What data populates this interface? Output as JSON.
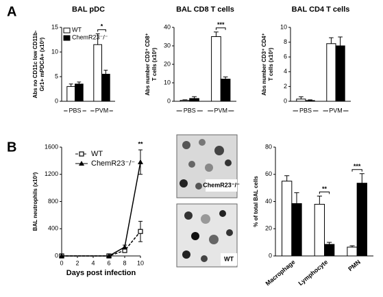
{
  "panel_labels": [
    "A",
    "B"
  ],
  "images": [
    {
      "label": "ChemR23⁻/⁻"
    },
    {
      "label": "WT"
    }
  ],
  "chart_data": [
    {
      "type": "bar",
      "title": "BAL pDC",
      "ylabel": [
        "Abs no CD11c low CD11b-",
        "Gr1+ mPDCA+ (x10³)"
      ],
      "categories": [
        "PBS",
        "PVM"
      ],
      "ylim": [
        0,
        15
      ],
      "yticks": [
        0,
        5,
        10,
        15
      ],
      "legend": "upper left",
      "series": [
        {
          "name": "WT",
          "color": "#ffffff",
          "values": [
            3,
            11.5
          ],
          "errors": [
            0.5,
            2.2
          ]
        },
        {
          "name": "ChemR23⁻/⁻",
          "color": "#000000",
          "values": [
            3.5,
            5.5
          ],
          "errors": [
            0.4,
            0.8
          ]
        }
      ],
      "annotations": [
        {
          "text": "*",
          "category": "PVM"
        }
      ]
    },
    {
      "type": "bar",
      "title": "BAL CD8 T cells",
      "ylabel": [
        "Abs number CD3⁺ CD8⁺",
        "T cells (x10³)"
      ],
      "categories": [
        "PBS",
        "PVM"
      ],
      "ylim": [
        0,
        40
      ],
      "yticks": [
        0,
        10,
        20,
        30,
        40
      ],
      "series": [
        {
          "color": "#ffffff",
          "values": [
            0.5,
            35
          ],
          "errors": [
            0.3,
            2.5
          ]
        },
        {
          "color": "#000000",
          "values": [
            1.5,
            12
          ],
          "errors": [
            1,
            1.2
          ]
        }
      ],
      "annotations": [
        {
          "text": "***",
          "category": "PVM"
        }
      ]
    },
    {
      "type": "bar",
      "title": "BAL CD4 T cells",
      "ylabel": [
        "Abs number CD3⁺ CD4⁺",
        "T cells (x10³)"
      ],
      "categories": [
        "PBS",
        "PVM"
      ],
      "ylim": [
        0,
        10
      ],
      "yticks": [
        0,
        2,
        4,
        6,
        8,
        10
      ],
      "series": [
        {
          "color": "#ffffff",
          "values": [
            0.3,
            7.8
          ],
          "errors": [
            0.3,
            0.8
          ]
        },
        {
          "color": "#000000",
          "values": [
            0.1,
            7.5
          ],
          "errors": [
            0.1,
            1.2
          ]
        }
      ]
    },
    {
      "type": "line",
      "ylabel": "BAL neutrophils (x10³)",
      "xlabel": "Days post infection",
      "x": [
        0,
        6,
        8,
        10
      ],
      "xlim": [
        0,
        10
      ],
      "xticks": [
        0,
        2,
        4,
        6,
        8,
        10
      ],
      "ylim": [
        0,
        1600
      ],
      "yticks": [
        0,
        400,
        800,
        1200,
        1600
      ],
      "legend": "upper left",
      "series": [
        {
          "name": "WT",
          "color": "#000000",
          "linestyle": "dashed",
          "marker": "square",
          "values": [
            0,
            0,
            80,
            360
          ],
          "errors": [
            0,
            0,
            20,
            150
          ]
        },
        {
          "name": "ChemR23⁻/⁻",
          "color": "#000000",
          "linestyle": "solid",
          "marker": "triangle",
          "values": [
            0,
            0,
            130,
            1380
          ],
          "errors": [
            0,
            0,
            30,
            180
          ]
        }
      ],
      "annotations": [
        {
          "text": "**",
          "x": 10
        }
      ]
    },
    {
      "type": "bar",
      "ylabel": "% of total BAL cells",
      "categories": [
        "Macrophage",
        "Lymphocyte",
        "PMN"
      ],
      "ylim": [
        0,
        80
      ],
      "yticks": [
        0,
        20,
        40,
        60,
        80
      ],
      "xtick_rotation": 40,
      "series": [
        {
          "color": "#ffffff",
          "values": [
            55,
            38,
            6.5
          ],
          "errors": [
            4,
            6,
            1
          ]
        },
        {
          "color": "#000000",
          "values": [
            38.5,
            8.5,
            53.5
          ],
          "errors": [
            8,
            1.5,
            7
          ]
        }
      ],
      "annotations": [
        {
          "text": "**",
          "category": "Lymphocyte"
        },
        {
          "text": "***",
          "category": "PMN"
        }
      ]
    }
  ]
}
